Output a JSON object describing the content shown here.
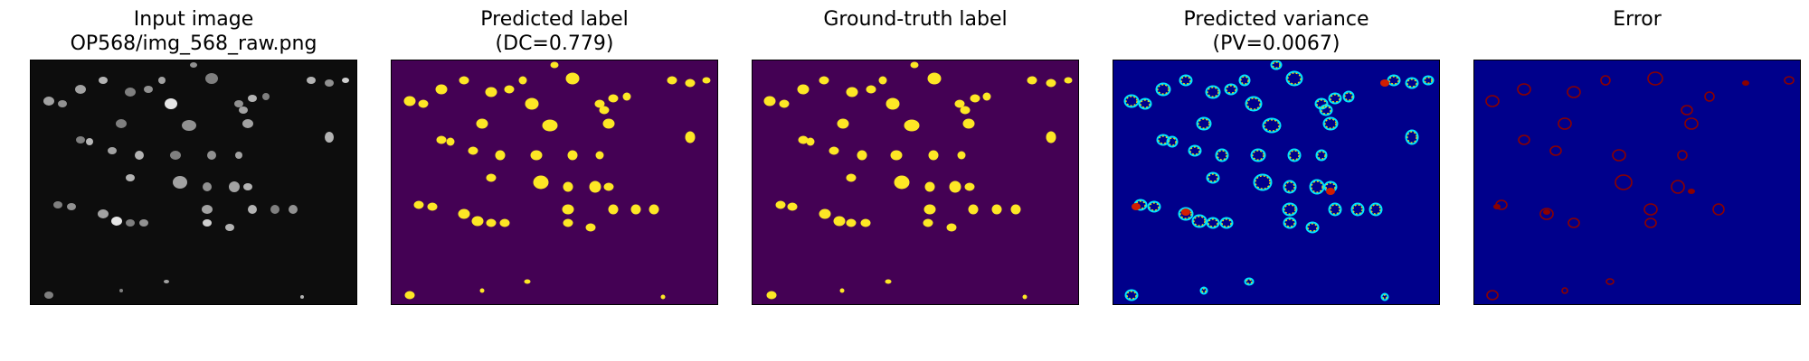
{
  "panels": [
    {
      "title_line1": "Input image",
      "title_line2": "OP568/img_568_raw.png",
      "kind": "raw"
    },
    {
      "title_line1": "Predicted label",
      "title_line2": "(DC=0.779)",
      "kind": "pred"
    },
    {
      "title_line1": "",
      "title_line2": "Ground-truth label",
      "kind": "gt"
    },
    {
      "title_line1": "Predicted variance",
      "title_line2": "(PV=0.0067)",
      "kind": "var"
    },
    {
      "title_line1": "",
      "title_line2": "Error",
      "kind": "err"
    }
  ],
  "colors": {
    "raw_background": "#0d0d0d",
    "raw_nucleus": "#bdbdbd",
    "label_background": "#440154",
    "label_nucleus": "#fde725",
    "variance_background": "#00008b",
    "variance_ring": "#00e5ff",
    "variance_core": "#ffd400",
    "variance_hot": "#d21e00",
    "error_background": "#00008b",
    "error_mark": "#8b0000"
  }
}
